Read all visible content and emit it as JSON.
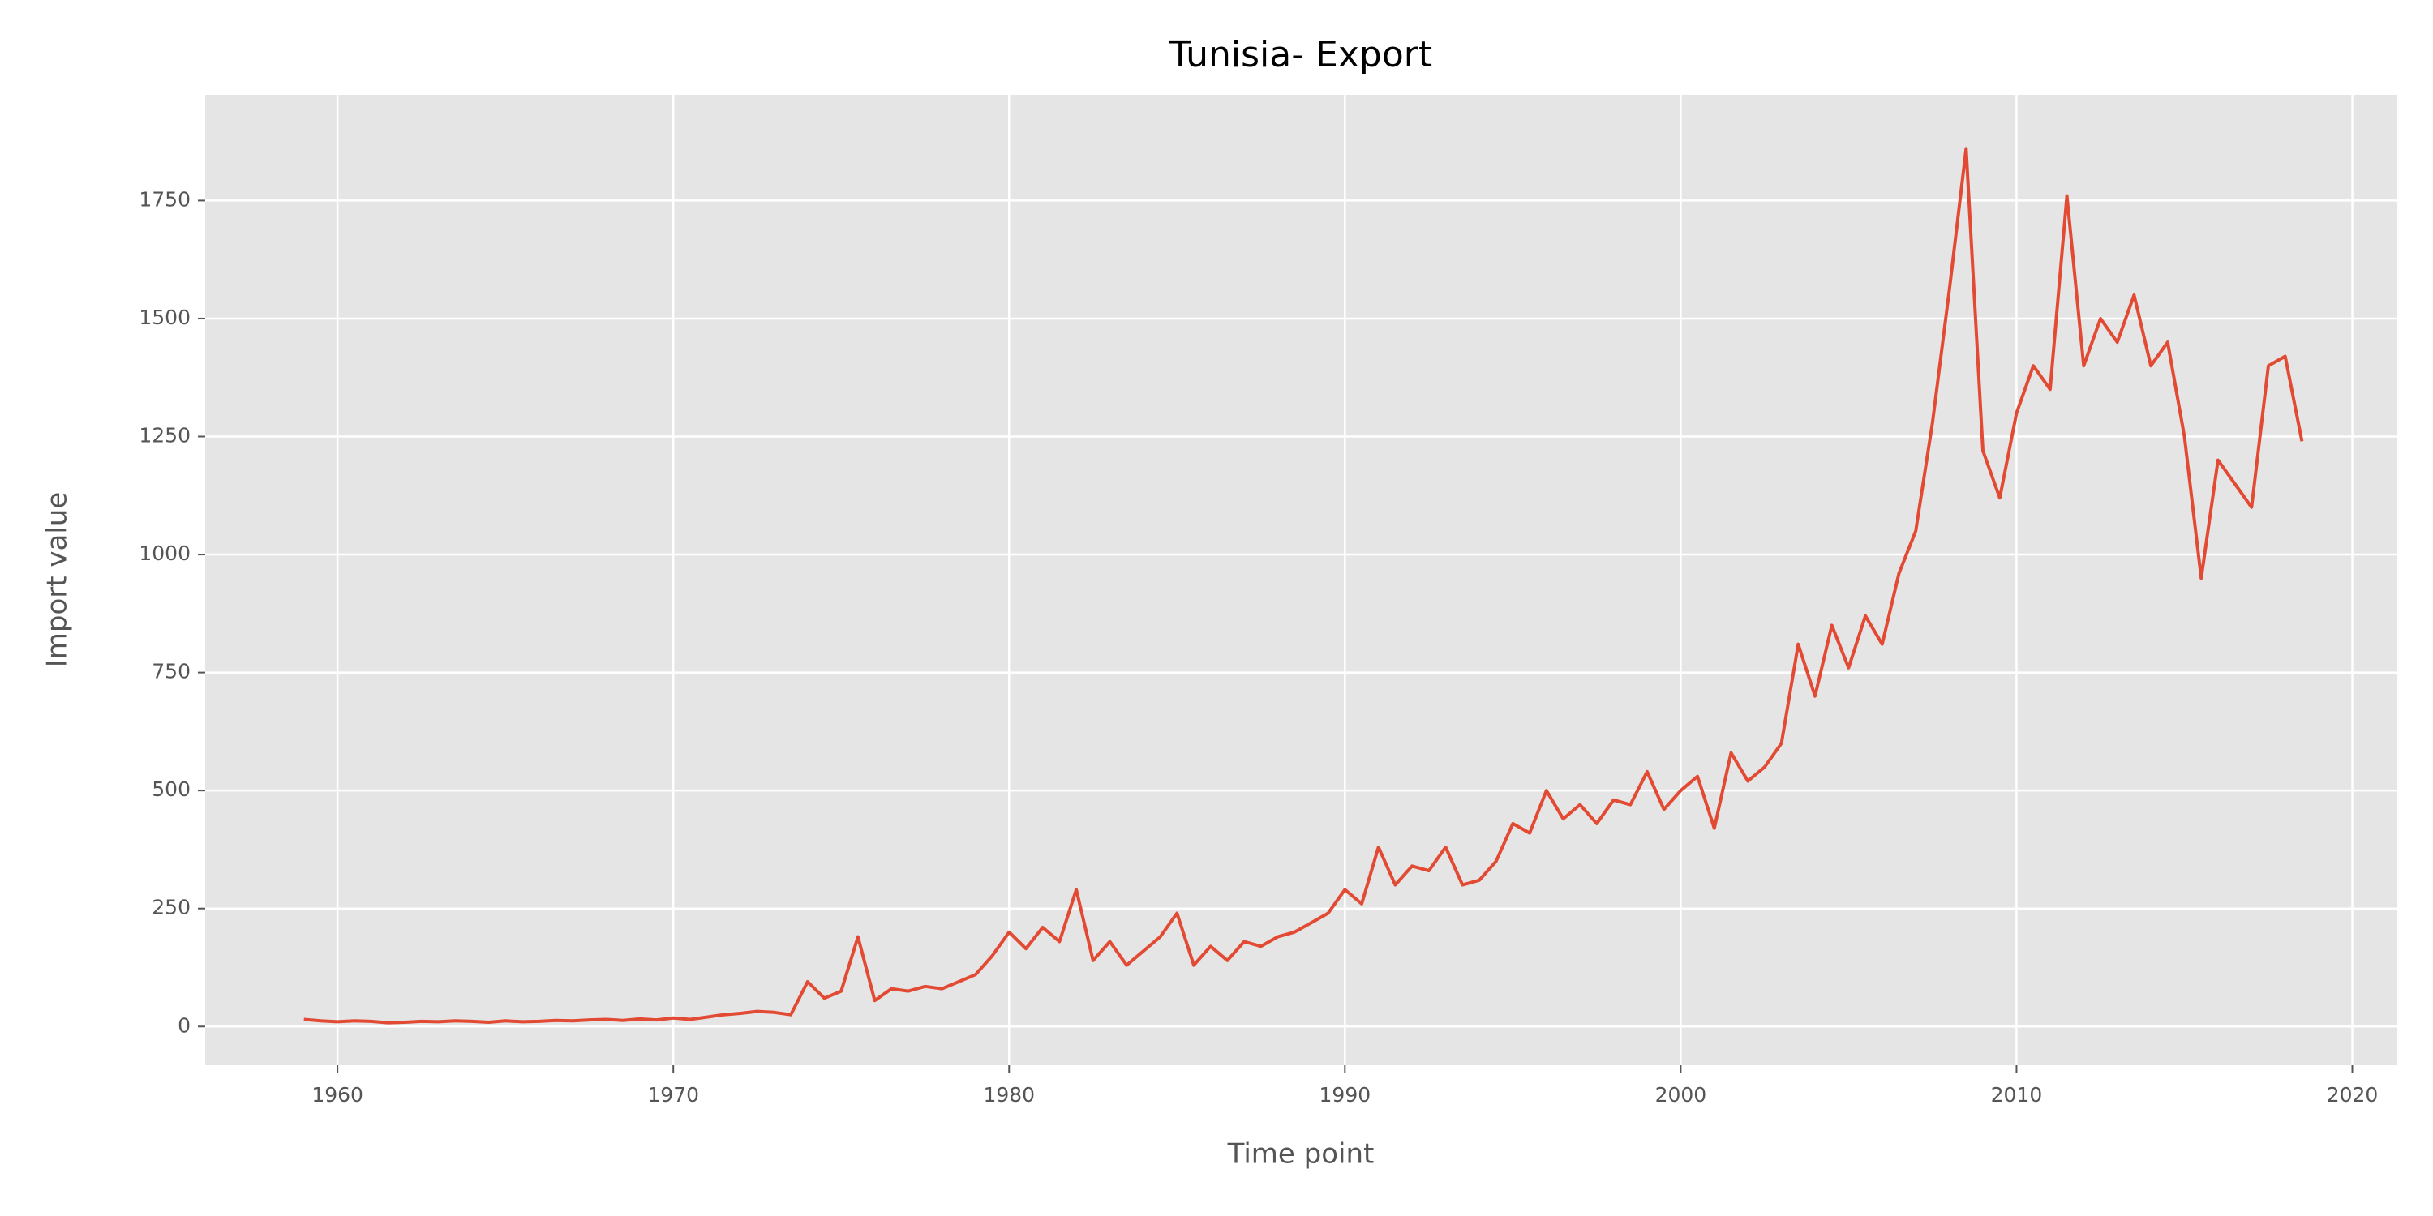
{
  "chart_data": {
    "type": "line",
    "title": "Tunisia- Export",
    "xlabel": "Time point",
    "ylabel": "Import value",
    "x": [
      1959,
      1959.5,
      1960,
      1960.5,
      1961,
      1961.5,
      1962,
      1962.5,
      1963,
      1963.5,
      1964,
      1964.5,
      1965,
      1965.5,
      1966,
      1966.5,
      1967,
      1967.5,
      1968,
      1968.5,
      1969,
      1969.5,
      1970,
      1970.5,
      1971,
      1971.5,
      1972,
      1972.5,
      1973,
      1973.5,
      1974,
      1974.5,
      1975,
      1975.5,
      1976,
      1976.5,
      1977,
      1977.5,
      1978,
      1978.5,
      1979,
      1979.5,
      1980,
      1980.5,
      1981,
      1981.5,
      1982,
      1982.5,
      1983,
      1983.5,
      1984,
      1984.5,
      1985,
      1985.5,
      1986,
      1986.5,
      1987,
      1987.5,
      1988,
      1988.5,
      1989,
      1989.5,
      1990,
      1990.5,
      1991,
      1991.5,
      1992,
      1992.5,
      1993,
      1993.5,
      1994,
      1994.5,
      1995,
      1995.5,
      1996,
      1996.5,
      1997,
      1997.5,
      1998,
      1998.5,
      1999,
      1999.5,
      2000,
      2000.5,
      2001,
      2001.5,
      2002,
      2002.5,
      2003,
      2003.5,
      2004,
      2004.5,
      2005,
      2005.5,
      2006,
      2006.5,
      2007,
      2007.5,
      2008,
      2008.5,
      2009,
      2009.5,
      2010,
      2010.5,
      2011,
      2011.5,
      2012,
      2012.5,
      2013,
      2013.5,
      2014,
      2014.5,
      2015,
      2015.5,
      2016,
      2016.5,
      2017,
      2017.5,
      2018,
      2018.5
    ],
    "series": [
      {
        "name": "Export",
        "color": "#E24A33",
        "values": [
          15,
          12,
          10,
          12,
          11,
          8,
          9,
          11,
          10,
          12,
          11,
          9,
          12,
          10,
          11,
          13,
          12,
          14,
          15,
          13,
          16,
          14,
          18,
          15,
          20,
          25,
          28,
          32,
          30,
          25,
          95,
          60,
          75,
          190,
          55,
          80,
          75,
          85,
          80,
          95,
          110,
          150,
          200,
          165,
          210,
          180,
          290,
          140,
          180,
          130,
          160,
          190,
          240,
          130,
          170,
          140,
          180,
          170,
          190,
          200,
          220,
          240,
          290,
          260,
          380,
          300,
          340,
          330,
          380,
          300,
          310,
          350,
          430,
          410,
          500,
          440,
          470,
          430,
          480,
          470,
          540,
          460,
          500,
          530,
          420,
          580,
          520,
          550,
          600,
          810,
          700,
          850,
          760,
          870,
          810,
          960,
          1050,
          1280,
          1560,
          1860,
          1220,
          1120,
          1300,
          1400,
          1350,
          1760,
          1400,
          1500,
          1450,
          1550,
          1400,
          1450,
          1250,
          950,
          1200,
          1150,
          1100,
          1400,
          1420,
          1240
        ]
      }
    ],
    "xlim": [
      1956.06,
      2021.34
    ],
    "ylim": [
      -82,
      1974
    ],
    "xticks": [
      1960,
      1970,
      1980,
      1990,
      2000,
      2010,
      2020
    ],
    "yticks": [
      0,
      250,
      500,
      750,
      1000,
      1250,
      1500,
      1750
    ],
    "grid": true
  }
}
